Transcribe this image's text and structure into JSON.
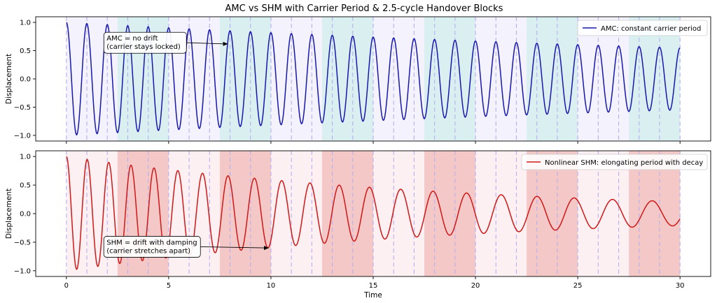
{
  "figure": {
    "title": "AMC vs SHM with Carrier Period & 2.5-cycle Handover Blocks"
  },
  "chart_data": [
    {
      "type": "line",
      "panel": "top",
      "title": "",
      "xlabel": "",
      "ylabel": "Displacement",
      "xlim": [
        -1.5,
        31.5
      ],
      "ylim": [
        -1.1,
        1.1
      ],
      "xticks": [
        0,
        5,
        10,
        15,
        20,
        25,
        30
      ],
      "yticks": [
        -1.0,
        -0.5,
        0.0,
        0.5,
        1.0
      ],
      "ytick_labels": [
        "−1.0",
        "−0.5",
        "0.0",
        "0.5",
        "1.0"
      ],
      "legend": {
        "position": "top-right",
        "label": "AMC: constant carrier period"
      },
      "series": [
        {
          "name": "AMC: constant carrier period",
          "color": "#1818b0",
          "model": "decaying cosine, constant period",
          "amplitude_start": 1.0,
          "decay_rate": 0.02,
          "period": 1.0,
          "period_growth": 0.0,
          "x_range": [
            0,
            30
          ]
        }
      ],
      "carrier_marks": [
        0,
        1,
        2,
        3,
        4,
        5,
        6,
        7,
        8,
        9,
        10,
        11,
        12,
        13,
        14,
        15,
        16,
        17,
        18,
        19,
        20,
        21,
        22,
        23,
        24,
        25,
        26,
        27,
        28,
        29,
        30
      ],
      "carrier_mark_color": "#b8b0f0",
      "handover_blocks": [
        {
          "x0": 0,
          "x1": 2.5,
          "highlight": false
        },
        {
          "x0": 2.5,
          "x1": 5,
          "highlight": true
        },
        {
          "x0": 5,
          "x1": 7.5,
          "highlight": false
        },
        {
          "x0": 7.5,
          "x1": 10,
          "highlight": true
        },
        {
          "x0": 10,
          "x1": 12.5,
          "highlight": false
        },
        {
          "x0": 12.5,
          "x1": 15,
          "highlight": true
        },
        {
          "x0": 15,
          "x1": 17.5,
          "highlight": false
        },
        {
          "x0": 17.5,
          "x1": 20,
          "highlight": true
        },
        {
          "x0": 20,
          "x1": 22.5,
          "highlight": false
        },
        {
          "x0": 22.5,
          "x1": 25,
          "highlight": true
        },
        {
          "x0": 25,
          "x1": 27.5,
          "highlight": false
        },
        {
          "x0": 27.5,
          "x1": 30,
          "highlight": true
        }
      ],
      "block_color_light": "#f3f2fd",
      "block_color_highlight": "#d9eff0",
      "annotation": {
        "lines": [
          "AMC = no drift",
          "(carrier stays locked)"
        ],
        "text_at": [
          2.0,
          0.64
        ],
        "arrow_to": [
          7.9,
          0.62
        ]
      }
    },
    {
      "type": "line",
      "panel": "bottom",
      "title": "",
      "xlabel": "Time",
      "ylabel": "Displacement",
      "xlim": [
        -1.5,
        31.5
      ],
      "ylim": [
        -1.1,
        1.1
      ],
      "xticks": [
        0,
        5,
        10,
        15,
        20,
        25,
        30
      ],
      "xtick_labels": [
        "0",
        "5",
        "10",
        "15",
        "20",
        "25",
        "30"
      ],
      "yticks": [
        -1.0,
        -0.5,
        0.0,
        0.5,
        1.0
      ],
      "ytick_labels": [
        "−1.0",
        "−0.5",
        "0.0",
        "0.5",
        "1.0"
      ],
      "legend": {
        "position": "top-right",
        "label": "Nonlinear SHM: elongating period with decay"
      },
      "series": [
        {
          "name": "Nonlinear SHM: elongating period with decay",
          "color": "#d01818",
          "model": "decaying cosine, period elongating linearly",
          "amplitude_start": 1.0,
          "decay_rate": 0.052,
          "period": 1.0,
          "period_growth": 0.034,
          "x_range": [
            0,
            30
          ]
        }
      ],
      "carrier_marks": [
        0,
        1,
        2,
        3,
        4,
        5,
        6,
        7,
        8,
        9,
        10,
        11,
        12,
        13,
        14,
        15,
        16,
        17,
        18,
        19,
        20,
        21,
        22,
        23,
        24,
        25,
        26,
        27,
        28,
        29,
        30
      ],
      "carrier_mark_color": "#b8b0f0",
      "handover_blocks": [
        {
          "x0": 0,
          "x1": 2.5,
          "highlight": false
        },
        {
          "x0": 2.5,
          "x1": 5,
          "highlight": true
        },
        {
          "x0": 5,
          "x1": 7.5,
          "highlight": false
        },
        {
          "x0": 7.5,
          "x1": 10,
          "highlight": true
        },
        {
          "x0": 10,
          "x1": 12.5,
          "highlight": false
        },
        {
          "x0": 12.5,
          "x1": 15,
          "highlight": true
        },
        {
          "x0": 15,
          "x1": 17.5,
          "highlight": false
        },
        {
          "x0": 17.5,
          "x1": 20,
          "highlight": true
        },
        {
          "x0": 20,
          "x1": 22.5,
          "highlight": false
        },
        {
          "x0": 22.5,
          "x1": 25,
          "highlight": true
        },
        {
          "x0": 25,
          "x1": 27.5,
          "highlight": false
        },
        {
          "x0": 27.5,
          "x1": 30,
          "highlight": true
        }
      ],
      "block_color_light": "#fdf0f2",
      "block_color_highlight": "#f3c8c6",
      "annotation": {
        "lines": [
          "SHM = drift with damping",
          "(carrier stretches apart)"
        ],
        "text_at": [
          2.0,
          -0.58
        ],
        "arrow_to": [
          9.9,
          -0.6
        ]
      }
    }
  ]
}
